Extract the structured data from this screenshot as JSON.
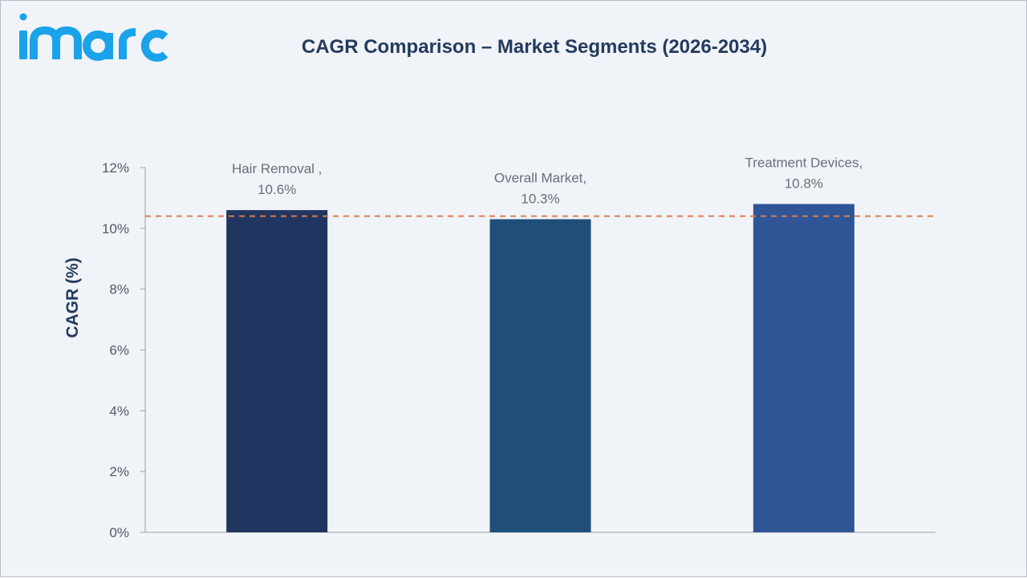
{
  "brand": {
    "logo_text": "imarc"
  },
  "chart_data": {
    "type": "bar",
    "title": "CAGR Comparison – Market Segments (2026-2034)",
    "xlabel": "",
    "ylabel": "CAGR (%)",
    "ylim": [
      0,
      12
    ],
    "y_ticks": [
      "0%",
      "2%",
      "4%",
      "6%",
      "8%",
      "10%",
      "12%"
    ],
    "categories": [
      "Hair Removal",
      "Overall Market",
      "Treatment Devices"
    ],
    "values": [
      10.6,
      10.3,
      10.8
    ],
    "data_labels": [
      [
        "Hair Removal ,",
        "10.6%"
      ],
      [
        "Overall Market,",
        "10.3%"
      ],
      [
        "Treatment Devices,",
        "10.8%"
      ]
    ],
    "reference_line": {
      "value": 10.4,
      "style": "dashed",
      "color": "#e07b4a"
    },
    "colors": [
      "#20355f",
      "#1f4e79",
      "#2f5597"
    ],
    "grid": false,
    "legend": "none"
  }
}
